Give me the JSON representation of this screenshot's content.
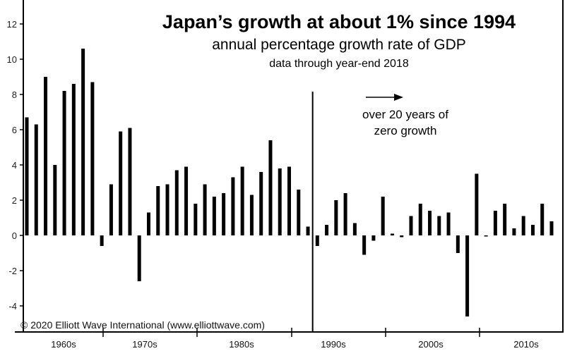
{
  "chart_data": {
    "type": "bar",
    "title": "Japan’s growth at about 1% since 1994",
    "subtitle": "annual percentage growth rate of GDP",
    "note": "data through year-end 2018",
    "annotation": "over 20 years of zero growth",
    "annotation_lines": [
      "over 20 years of",
      "zero growth"
    ],
    "copyright": "© 2020 Elliott Wave International (www.elliottwave.com)",
    "xlabel": "",
    "ylabel": "",
    "ylim": [
      -5.4,
      13.4
    ],
    "y_ticks": [
      12,
      10,
      8,
      6,
      4,
      2,
      0,
      -2,
      -4
    ],
    "decade_labels": [
      "1960s",
      "1970s",
      "1980s",
      "1990s",
      "2000s",
      "2010s"
    ],
    "grid": false,
    "bar_color": "#000000",
    "values": [
      6.7,
      6.3,
      9.0,
      4.0,
      8.2,
      8.6,
      10.6,
      8.7,
      -0.6,
      2.9,
      5.9,
      6.1,
      -2.6,
      1.3,
      2.8,
      2.9,
      3.7,
      3.9,
      1.8,
      2.9,
      2.2,
      2.4,
      3.3,
      3.9,
      2.3,
      3.6,
      5.4,
      3.8,
      3.9,
      2.6,
      0.5,
      -0.6,
      0.6,
      2.0,
      2.4,
      0.7,
      -1.1,
      -0.3,
      2.2,
      0.1,
      -0.1,
      1.1,
      1.8,
      1.4,
      1.1,
      1.3,
      -1.0,
      -4.6,
      3.5,
      0.0,
      1.4,
      1.8,
      0.4,
      1.1,
      0.6,
      1.8,
      0.8
    ],
    "divider_after_index": 30
  }
}
